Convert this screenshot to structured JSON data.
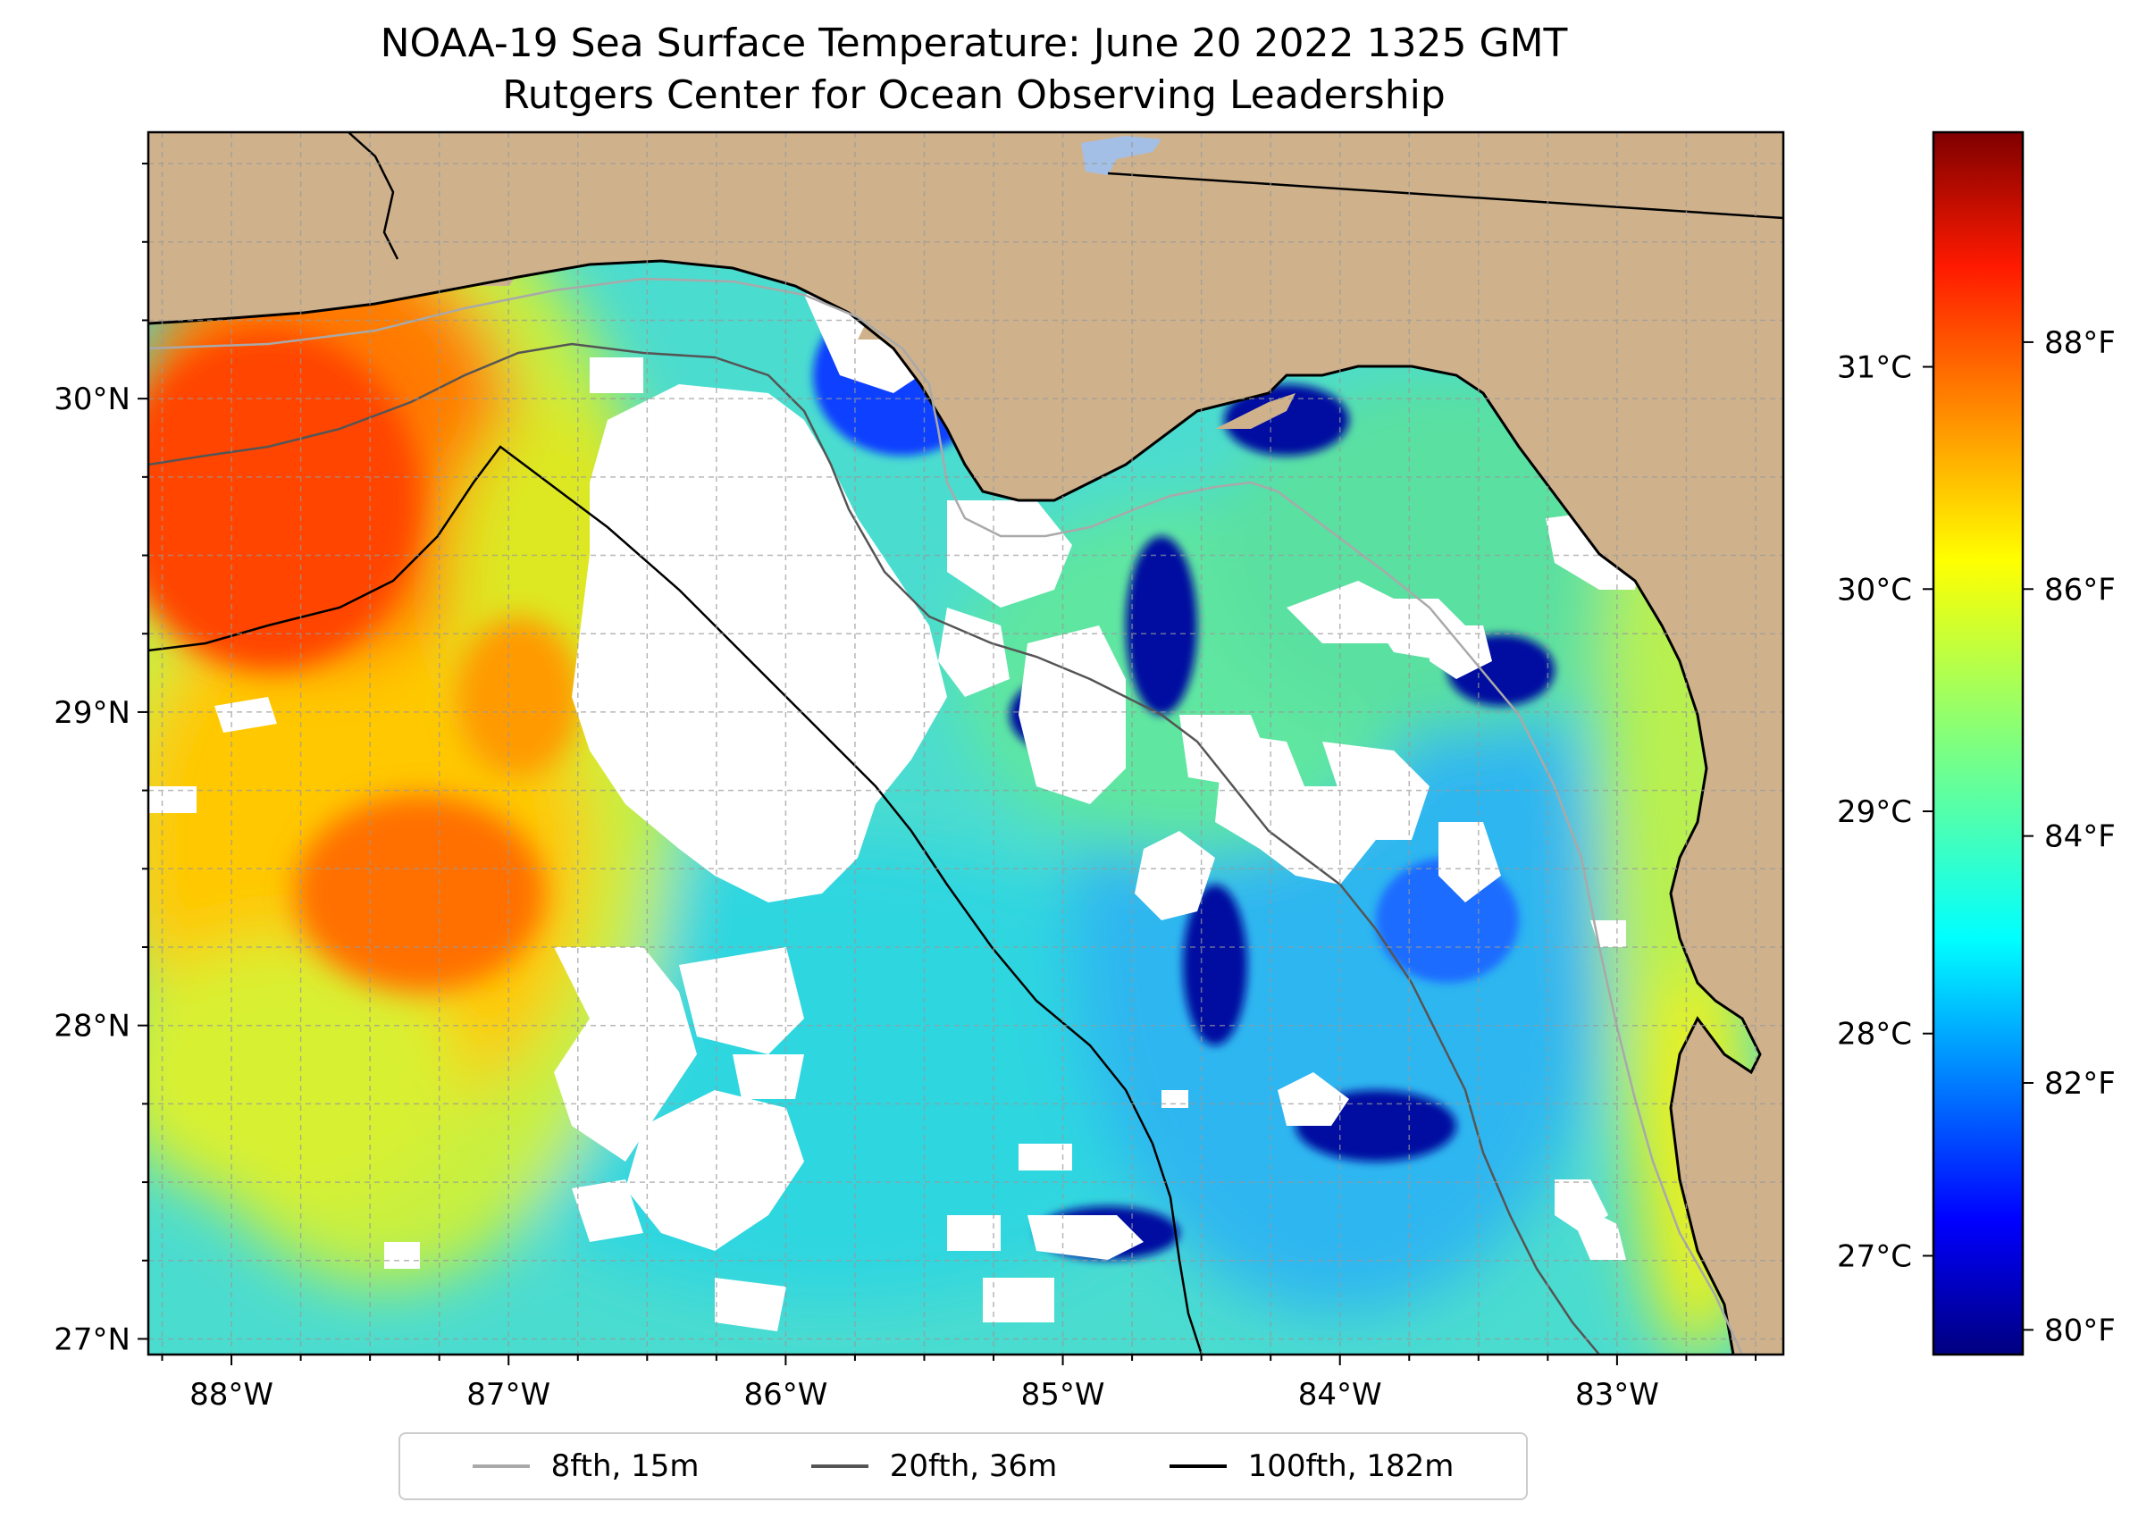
{
  "title": {
    "line1": "NOAA-19 Sea Surface Temperature: June 20 2022 1325 GMT",
    "line2": "Rutgers Center for Ocean Observing Leadership"
  },
  "map": {
    "projection": "PlateCarree",
    "lon_range": [
      -88.3,
      -82.4
    ],
    "lat_range": [
      26.95,
      30.85
    ],
    "lon_ticks": [
      {
        "value": -88,
        "label": "88°W"
      },
      {
        "value": -87,
        "label": "87°W"
      },
      {
        "value": -86,
        "label": "86°W"
      },
      {
        "value": -85,
        "label": "85°W"
      },
      {
        "value": -84,
        "label": "84°W"
      },
      {
        "value": -83,
        "label": "83°W"
      }
    ],
    "lat_ticks": [
      {
        "value": 27,
        "label": "27°N"
      },
      {
        "value": 28,
        "label": "28°N"
      },
      {
        "value": 29,
        "label": "29°N"
      },
      {
        "value": 30,
        "label": "30°N"
      }
    ],
    "gridlines": "dashed, 0.25° spacing",
    "land_color": "#cfb28c",
    "water_color": "#a3bfe6",
    "cloud_mask_color": "#ffffff"
  },
  "colorbar": {
    "colormap": "jet",
    "range_f": [
      79.8,
      89.7
    ],
    "celsius_ticks": [
      {
        "value": 27,
        "label": "27°C"
      },
      {
        "value": 28,
        "label": "28°C"
      },
      {
        "value": 29,
        "label": "29°C"
      },
      {
        "value": 30,
        "label": "30°C"
      },
      {
        "value": 31,
        "label": "31°C"
      }
    ],
    "fahrenheit_ticks": [
      {
        "value": 80,
        "label": "80°F"
      },
      {
        "value": 82,
        "label": "82°F"
      },
      {
        "value": 84,
        "label": "84°F"
      },
      {
        "value": 86,
        "label": "86°F"
      },
      {
        "value": 88,
        "label": "88°F"
      }
    ]
  },
  "legend": {
    "items": [
      {
        "label": "8fth, 15m",
        "color": "#a9a9a9"
      },
      {
        "label": "20fth, 36m",
        "color": "#555555"
      },
      {
        "label": "100fth, 182m",
        "color": "#000000"
      }
    ]
  }
}
